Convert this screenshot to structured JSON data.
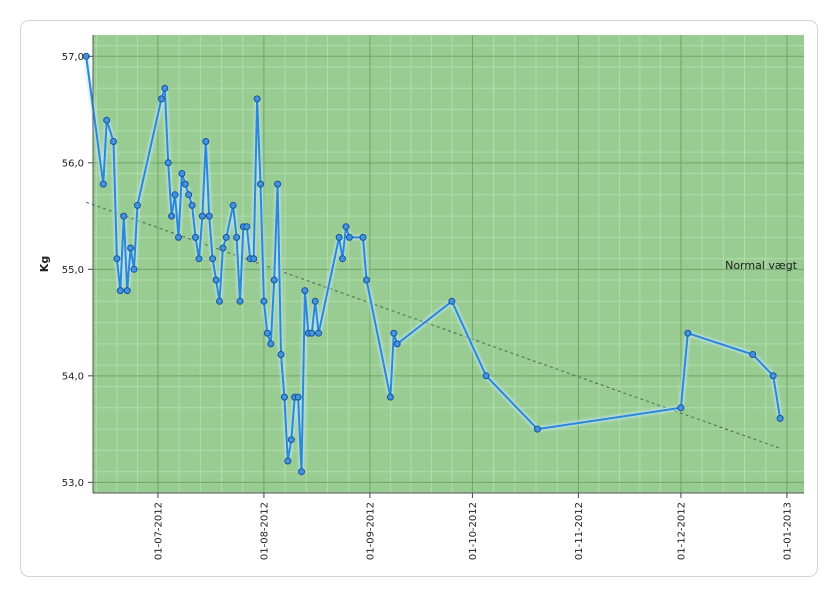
{
  "chart_data": {
    "type": "line",
    "title": "",
    "xlabel": "",
    "ylabel": "Kg",
    "ylim": [
      52.9,
      57.2
    ],
    "xlim": [
      "2012-06-12",
      "2013-01-06"
    ],
    "grid": true,
    "plot_background": "#99cc93",
    "line_color": "#2b88d8",
    "trend_color": "#5a6e58",
    "y_ticks": [
      "53,0",
      "54,0",
      "55,0",
      "56,0",
      "57,0"
    ],
    "x_ticks": [
      "01-07-2012",
      "01-08-2012",
      "01-09-2012",
      "01-10-2012",
      "01-11-2012",
      "01-12-2012",
      "01-01-2013"
    ],
    "annotation": "Normal vægt",
    "series": [
      {
        "points": [
          [
            "2012-06-10",
            57.0
          ],
          [
            "2012-06-15",
            55.8
          ],
          [
            "2012-06-16",
            56.4
          ],
          [
            "2012-06-18",
            56.2
          ],
          [
            "2012-06-19",
            55.1
          ],
          [
            "2012-06-20",
            54.8
          ],
          [
            "2012-06-21",
            55.5
          ],
          [
            "2012-06-22",
            54.8
          ],
          [
            "2012-06-23",
            55.2
          ],
          [
            "2012-06-24",
            55.0
          ],
          [
            "2012-06-25",
            55.6
          ],
          [
            "2012-07-02",
            56.6
          ],
          [
            "2012-07-03",
            56.7
          ],
          [
            "2012-07-04",
            56.0
          ],
          [
            "2012-07-05",
            55.5
          ],
          [
            "2012-07-06",
            55.7
          ],
          [
            "2012-07-07",
            55.3
          ],
          [
            "2012-07-08",
            55.9
          ],
          [
            "2012-07-09",
            55.8
          ],
          [
            "2012-07-10",
            55.7
          ],
          [
            "2012-07-11",
            55.6
          ],
          [
            "2012-07-12",
            55.3
          ],
          [
            "2012-07-13",
            55.1
          ],
          [
            "2012-07-14",
            55.5
          ],
          [
            "2012-07-15",
            56.2
          ],
          [
            "2012-07-16",
            55.5
          ],
          [
            "2012-07-17",
            55.1
          ],
          [
            "2012-07-18",
            54.9
          ],
          [
            "2012-07-19",
            54.7
          ],
          [
            "2012-07-20",
            55.2
          ],
          [
            "2012-07-21",
            55.3
          ],
          [
            "2012-07-23",
            55.6
          ],
          [
            "2012-07-24",
            55.3
          ],
          [
            "2012-07-25",
            54.7
          ],
          [
            "2012-07-26",
            55.4
          ],
          [
            "2012-07-27",
            55.4
          ],
          [
            "2012-07-28",
            55.1
          ],
          [
            "2012-07-29",
            55.1
          ],
          [
            "2012-07-30",
            56.6
          ],
          [
            "2012-07-31",
            55.8
          ],
          [
            "2012-08-01",
            54.7
          ],
          [
            "2012-08-02",
            54.4
          ],
          [
            "2012-08-03",
            54.3
          ],
          [
            "2012-08-04",
            54.9
          ],
          [
            "2012-08-05",
            55.8
          ],
          [
            "2012-08-06",
            54.2
          ],
          [
            "2012-08-07",
            53.8
          ],
          [
            "2012-08-08",
            53.2
          ],
          [
            "2012-08-09",
            53.4
          ],
          [
            "2012-08-10",
            53.8
          ],
          [
            "2012-08-11",
            53.8
          ],
          [
            "2012-08-12",
            53.1
          ],
          [
            "2012-08-13",
            54.8
          ],
          [
            "2012-08-14",
            54.4
          ],
          [
            "2012-08-15",
            54.4
          ],
          [
            "2012-08-16",
            54.7
          ],
          [
            "2012-08-17",
            54.4
          ],
          [
            "2012-08-23",
            55.3
          ],
          [
            "2012-08-24",
            55.1
          ],
          [
            "2012-08-25",
            55.4
          ],
          [
            "2012-08-26",
            55.3
          ],
          [
            "2012-08-30",
            55.3
          ],
          [
            "2012-08-31",
            54.9
          ],
          [
            "2012-09-07",
            53.8
          ],
          [
            "2012-09-08",
            54.4
          ],
          [
            "2012-09-09",
            54.3
          ],
          [
            "2012-09-25",
            54.7
          ],
          [
            "2012-10-05",
            54.0
          ],
          [
            "2012-10-20",
            53.5
          ],
          [
            "2012-12-01",
            53.7
          ],
          [
            "2012-12-03",
            54.4
          ],
          [
            "2012-12-22",
            54.2
          ],
          [
            "2012-12-28",
            54.0
          ],
          [
            "2012-12-30",
            53.6
          ]
        ]
      }
    ],
    "trend": [
      [
        "2012-06-10",
        55.63
      ],
      [
        "2012-12-30",
        53.32
      ]
    ]
  }
}
